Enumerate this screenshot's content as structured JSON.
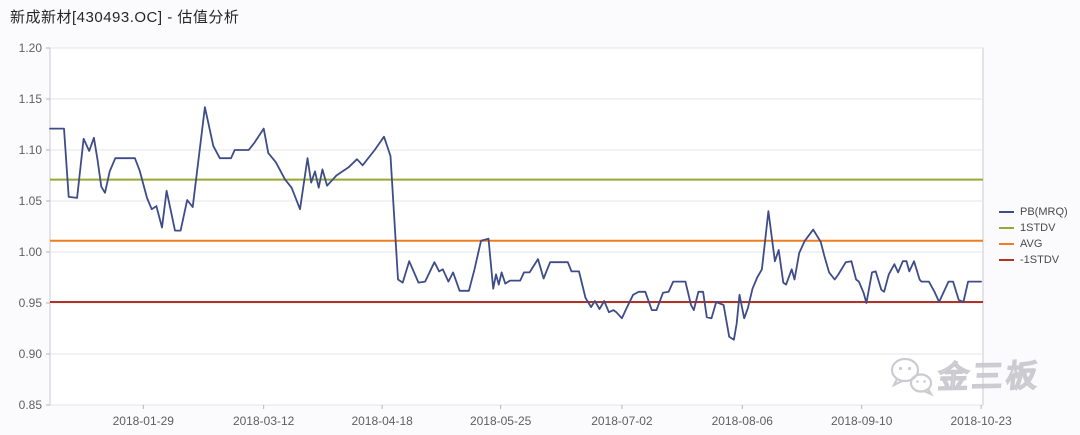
{
  "header": {
    "title": "新成新材[430493.OC] - 估值分析"
  },
  "watermark": {
    "text": "金三板",
    "icon": "wechat-chat-bubbles-icon"
  },
  "colors": {
    "background": "#fbfbfd",
    "plot_bg": "#ffffff",
    "plot_border": "#c9c9d2",
    "grid": "#e4e4e9",
    "axis_text": "#5f5f5f",
    "title_text": "#262626",
    "pb_line": "#3e4d89",
    "stdv_plus": "#9aa732",
    "avg_line": "#ee7e20",
    "stdv_minus": "#b23326",
    "watermark": "#c6c6cc"
  },
  "chart_data": {
    "type": "line",
    "title": "新成新材[430493.OC] - 估值分析",
    "xlabel": "",
    "ylabel": "",
    "ylim": [
      0.85,
      1.2
    ],
    "yticks": [
      1.2,
      1.15,
      1.1,
      1.05,
      1.0,
      0.95,
      0.9,
      0.85
    ],
    "grid": "horizontal",
    "legend_position": "right",
    "xticks": [
      {
        "label": "2018-01-29",
        "f": 0.1
      },
      {
        "label": "2018-03-12",
        "f": 0.229
      },
      {
        "label": "2018-04-18",
        "f": 0.356
      },
      {
        "label": "2018-05-25",
        "f": 0.483
      },
      {
        "label": "2018-07-02",
        "f": 0.613
      },
      {
        "label": "2018-08-06",
        "f": 0.742
      },
      {
        "label": "2018-09-10",
        "f": 0.87
      },
      {
        "label": "2018-10-23",
        "f": 0.998
      }
    ],
    "series": [
      {
        "name": "PB(MRQ)",
        "type": "line",
        "color": "#3e4d89",
        "points": [
          [
            0.0,
            1.121
          ],
          [
            0.015,
            1.121
          ],
          [
            0.02,
            1.054
          ],
          [
            0.029,
            1.053
          ],
          [
            0.036,
            1.111
          ],
          [
            0.042,
            1.099
          ],
          [
            0.047,
            1.112
          ],
          [
            0.051,
            1.09
          ],
          [
            0.055,
            1.064
          ],
          [
            0.059,
            1.058
          ],
          [
            0.064,
            1.079
          ],
          [
            0.07,
            1.092
          ],
          [
            0.091,
            1.092
          ],
          [
            0.096,
            1.08
          ],
          [
            0.104,
            1.053
          ],
          [
            0.109,
            1.042
          ],
          [
            0.114,
            1.045
          ],
          [
            0.12,
            1.024
          ],
          [
            0.125,
            1.06
          ],
          [
            0.134,
            1.021
          ],
          [
            0.14,
            1.021
          ],
          [
            0.147,
            1.051
          ],
          [
            0.153,
            1.044
          ],
          [
            0.166,
            1.142
          ],
          [
            0.175,
            1.104
          ],
          [
            0.182,
            1.092
          ],
          [
            0.194,
            1.092
          ],
          [
            0.198,
            1.1
          ],
          [
            0.213,
            1.1
          ],
          [
            0.219,
            1.107
          ],
          [
            0.229,
            1.121
          ],
          [
            0.234,
            1.097
          ],
          [
            0.242,
            1.088
          ],
          [
            0.252,
            1.071
          ],
          [
            0.259,
            1.063
          ],
          [
            0.268,
            1.042
          ],
          [
            0.276,
            1.092
          ],
          [
            0.28,
            1.068
          ],
          [
            0.284,
            1.079
          ],
          [
            0.288,
            1.063
          ],
          [
            0.292,
            1.081
          ],
          [
            0.297,
            1.065
          ],
          [
            0.307,
            1.075
          ],
          [
            0.32,
            1.083
          ],
          [
            0.329,
            1.091
          ],
          [
            0.335,
            1.085
          ],
          [
            0.348,
            1.1
          ],
          [
            0.358,
            1.113
          ],
          [
            0.365,
            1.094
          ],
          [
            0.373,
            0.973
          ],
          [
            0.378,
            0.97
          ],
          [
            0.385,
            0.991
          ],
          [
            0.395,
            0.97
          ],
          [
            0.402,
            0.971
          ],
          [
            0.412,
            0.99
          ],
          [
            0.417,
            0.981
          ],
          [
            0.421,
            0.983
          ],
          [
            0.427,
            0.971
          ],
          [
            0.432,
            0.98
          ],
          [
            0.439,
            0.962
          ],
          [
            0.449,
            0.962
          ],
          [
            0.455,
            0.983
          ],
          [
            0.462,
            1.011
          ],
          [
            0.47,
            1.013
          ],
          [
            0.475,
            0.964
          ],
          [
            0.478,
            0.978
          ],
          [
            0.481,
            0.968
          ],
          [
            0.484,
            0.98
          ],
          [
            0.488,
            0.969
          ],
          [
            0.493,
            0.972
          ],
          [
            0.504,
            0.972
          ],
          [
            0.508,
            0.98
          ],
          [
            0.514,
            0.98
          ],
          [
            0.523,
            0.993
          ],
          [
            0.529,
            0.974
          ],
          [
            0.536,
            0.99
          ],
          [
            0.555,
            0.99
          ],
          [
            0.559,
            0.981
          ],
          [
            0.567,
            0.981
          ],
          [
            0.574,
            0.955
          ],
          [
            0.58,
            0.946
          ],
          [
            0.584,
            0.952
          ],
          [
            0.589,
            0.944
          ],
          [
            0.594,
            0.952
          ],
          [
            0.599,
            0.941
          ],
          [
            0.604,
            0.943
          ],
          [
            0.607,
            0.941
          ],
          [
            0.613,
            0.935
          ],
          [
            0.618,
            0.945
          ],
          [
            0.625,
            0.958
          ],
          [
            0.631,
            0.961
          ],
          [
            0.638,
            0.961
          ],
          [
            0.645,
            0.943
          ],
          [
            0.65,
            0.943
          ],
          [
            0.657,
            0.96
          ],
          [
            0.663,
            0.961
          ],
          [
            0.668,
            0.971
          ],
          [
            0.681,
            0.971
          ],
          [
            0.687,
            0.948
          ],
          [
            0.69,
            0.943
          ],
          [
            0.695,
            0.961
          ],
          [
            0.7,
            0.961
          ],
          [
            0.704,
            0.936
          ],
          [
            0.709,
            0.935
          ],
          [
            0.714,
            0.951
          ],
          [
            0.722,
            0.948
          ],
          [
            0.728,
            0.917
          ],
          [
            0.733,
            0.914
          ],
          [
            0.736,
            0.93
          ],
          [
            0.739,
            0.958
          ],
          [
            0.744,
            0.935
          ],
          [
            0.748,
            0.945
          ],
          [
            0.753,
            0.964
          ],
          [
            0.758,
            0.975
          ],
          [
            0.763,
            0.983
          ],
          [
            0.77,
            1.04
          ],
          [
            0.777,
            0.991
          ],
          [
            0.781,
            1.002
          ],
          [
            0.786,
            0.97
          ],
          [
            0.789,
            0.968
          ],
          [
            0.795,
            0.983
          ],
          [
            0.798,
            0.973
          ],
          [
            0.803,
            0.999
          ],
          [
            0.809,
            1.011
          ],
          [
            0.818,
            1.022
          ],
          [
            0.826,
            1.01
          ],
          [
            0.83,
            0.996
          ],
          [
            0.835,
            0.98
          ],
          [
            0.841,
            0.973
          ],
          [
            0.845,
            0.978
          ],
          [
            0.853,
            0.99
          ],
          [
            0.859,
            0.991
          ],
          [
            0.864,
            0.973
          ],
          [
            0.867,
            0.971
          ],
          [
            0.872,
            0.96
          ],
          [
            0.875,
            0.95
          ],
          [
            0.881,
            0.98
          ],
          [
            0.885,
            0.981
          ],
          [
            0.891,
            0.963
          ],
          [
            0.894,
            0.961
          ],
          [
            0.899,
            0.978
          ],
          [
            0.905,
            0.988
          ],
          [
            0.909,
            0.98
          ],
          [
            0.914,
            0.991
          ],
          [
            0.918,
            0.991
          ],
          [
            0.921,
            0.981
          ],
          [
            0.926,
            0.991
          ],
          [
            0.932,
            0.973
          ],
          [
            0.934,
            0.971
          ],
          [
            0.942,
            0.971
          ],
          [
            0.948,
            0.961
          ],
          [
            0.953,
            0.951
          ],
          [
            0.963,
            0.971
          ],
          [
            0.968,
            0.971
          ],
          [
            0.974,
            0.953
          ],
          [
            0.979,
            0.951
          ],
          [
            0.984,
            0.971
          ],
          [
            0.998,
            0.971
          ]
        ]
      },
      {
        "name": "1STDV",
        "type": "hline",
        "color": "#9aa732",
        "value": 1.071
      },
      {
        "name": "AVG",
        "type": "hline",
        "color": "#ee7e20",
        "value": 1.011
      },
      {
        "name": "-1STDV",
        "type": "hline",
        "color": "#b23326",
        "value": 0.951
      }
    ]
  }
}
